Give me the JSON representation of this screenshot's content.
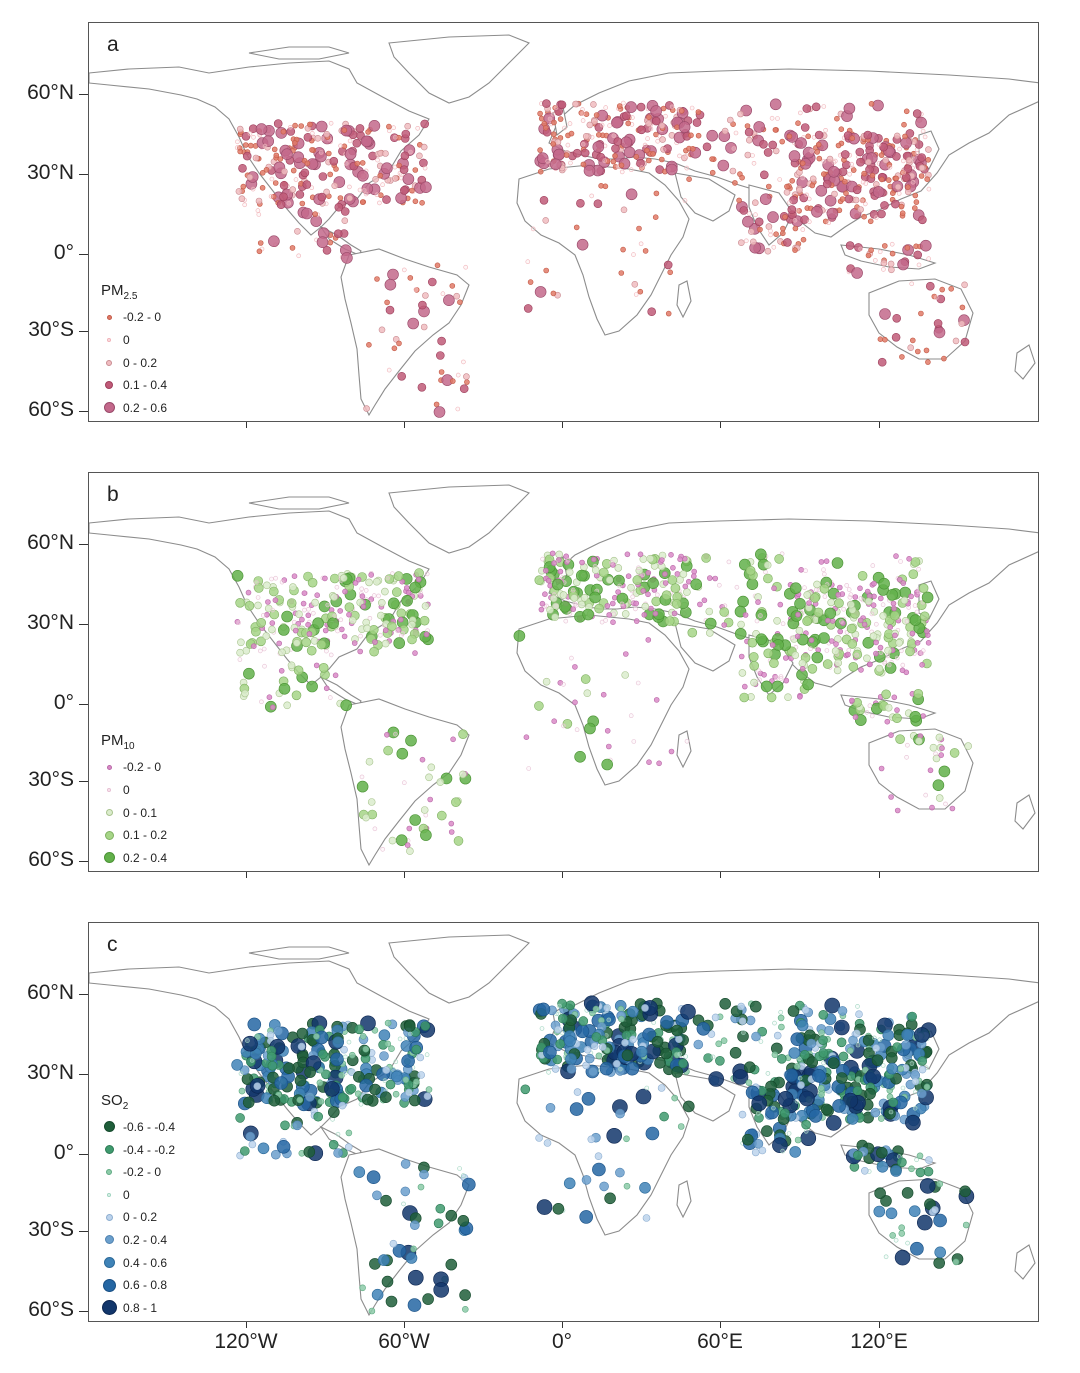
{
  "panels": [
    {
      "id": "a",
      "letter": "a",
      "legend_title": "PM",
      "legend_sub": "2.5",
      "legend": [
        {
          "label": "-0.2 - 0",
          "color": "#e07a67",
          "size": 5,
          "stroke": "#c35a48",
          "hollow": false
        },
        {
          "label": "0",
          "color": "#fbe3e5",
          "size": 4,
          "stroke": "#f0b2b8",
          "hollow": true
        },
        {
          "label": "0 - 0.2",
          "color": "#f0bcc0",
          "size": 6,
          "stroke": "#c98c92",
          "hollow": false
        },
        {
          "label": "0.1 - 0.4",
          "color": "#c05a78",
          "size": 8,
          "stroke": "#9e3f5c",
          "hollow": false
        },
        {
          "label": "0.2 - 0.6",
          "color": "#c3688b",
          "size": 11,
          "stroke": "#9a4a6a",
          "hollow": false
        }
      ]
    },
    {
      "id": "b",
      "letter": "b",
      "legend_title": "PM",
      "legend_sub": "10",
      "legend": [
        {
          "label": "-0.2 - 0",
          "color": "#d98ac7",
          "size": 5,
          "stroke": "#b96aa8",
          "hollow": false
        },
        {
          "label": "0",
          "color": "#fbe9f2",
          "size": 4,
          "stroke": "#e6c0d3",
          "hollow": true
        },
        {
          "label": "0 - 0.1",
          "color": "#dbeccc",
          "size": 7,
          "stroke": "#a9c48f",
          "hollow": false
        },
        {
          "label": "0.1 - 0.2",
          "color": "#a6d587",
          "size": 9,
          "stroke": "#7fb061",
          "hollow": false
        },
        {
          "label": "0.2 - 0.4",
          "color": "#62b04a",
          "size": 11,
          "stroke": "#4b9335",
          "hollow": false
        }
      ]
    },
    {
      "id": "c",
      "letter": "c",
      "legend_title": "SO",
      "legend_sub": "2",
      "legend": [
        {
          "label": "-0.6 - -0.4",
          "color": "#1f5e3a",
          "size": 11,
          "stroke": "#154a2c",
          "hollow": false
        },
        {
          "label": "-0.4 - -0.2",
          "color": "#3f9a6e",
          "size": 9,
          "stroke": "#2c7a54",
          "hollow": false
        },
        {
          "label": "-0.2 - 0",
          "color": "#8ccaa8",
          "size": 6,
          "stroke": "#5faa82",
          "hollow": false
        },
        {
          "label": "0",
          "color": "#e6f5ef",
          "size": 4,
          "stroke": "#9fd4bf",
          "hollow": true
        },
        {
          "label": "0 - 0.2",
          "color": "#bcd3ec",
          "size": 7,
          "stroke": "#8eaed0",
          "hollow": false
        },
        {
          "label": "0.2 - 0.4",
          "color": "#6b9fcc",
          "size": 9,
          "stroke": "#4f82b0",
          "hollow": false
        },
        {
          "label": "0.4 - 0.6",
          "color": "#3f83b7",
          "size": 11,
          "stroke": "#2c6a99",
          "hollow": false
        },
        {
          "label": "0.6 - 0.8",
          "color": "#2466a3",
          "size": 13,
          "stroke": "#184f84",
          "hollow": false
        },
        {
          "label": "0.8 - 1",
          "color": "#12366b",
          "size": 15,
          "stroke": "#0b2550",
          "hollow": false
        }
      ]
    }
  ],
  "lat_labels": [
    "60°N",
    "30°N",
    "0°",
    "30°S",
    "60°S"
  ],
  "lon_labels": [
    "120°W",
    "60°W",
    "0°",
    "60°E",
    "120°E"
  ],
  "colors": {
    "land_outline": "#8c8c8c",
    "frame": "#555555",
    "background": "#ffffff"
  }
}
